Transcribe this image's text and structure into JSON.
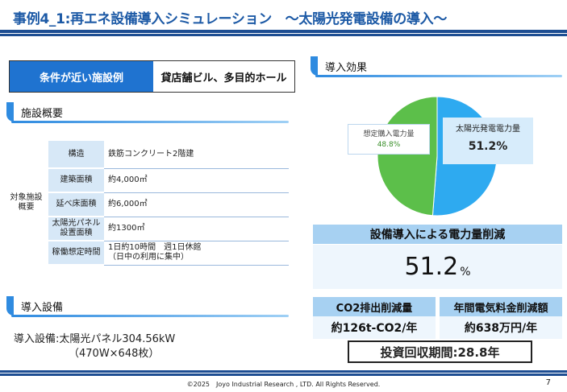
{
  "title": "事例4_1:再エネ設備導入シミュレーション　～太陽光発電設備の導入～",
  "condition": {
    "label": "条件が近い施設例",
    "value": "貸店舗ビル、多目的ホール"
  },
  "facility": {
    "header": "施設概要",
    "row_group_label": "対象施設\n概要",
    "rows": [
      {
        "label": "構造",
        "value": "鉄筋コンクリート2階建"
      },
      {
        "label": "建築面積",
        "value": "約4,000㎡"
      },
      {
        "label": "延べ床面積",
        "value": "約6,000㎡"
      },
      {
        "label": "太陽光パネル\n設置面積",
        "value": "約1300㎡"
      },
      {
        "label": "稼働想定時間",
        "value": "1日約10時間　週1日休館\n（日中の利用に集中）"
      }
    ]
  },
  "equipment": {
    "header": "導入設備",
    "line1": "導入設備:太陽光パネル304.56kW",
    "line2": "（470W×648枚）"
  },
  "effect": {
    "header": "導入効果",
    "band_label": "設備導入による電力量削減",
    "reduction_value": "51.2",
    "reduction_unit": "%",
    "co2_label": "CO2排出削減量",
    "co2_value": "約126t-CO2/年",
    "cost_label": "年間電気料金削減額",
    "cost_value": "約638万円/年",
    "payback": "投資回収期間:28.8年"
  },
  "chart_data": {
    "type": "pie",
    "slices": [
      {
        "label": "太陽光発電電力量",
        "value": 51.2,
        "display": "51.2%",
        "color": "#2eaaf0"
      },
      {
        "label": "想定購入電力量",
        "value": 48.8,
        "display": "48.8%",
        "color": "#5cbf4a"
      }
    ]
  },
  "footer": {
    "copyright": "©2025　Joyo Industrial Research , LTD. All Rights Reserved.",
    "page": "7"
  }
}
